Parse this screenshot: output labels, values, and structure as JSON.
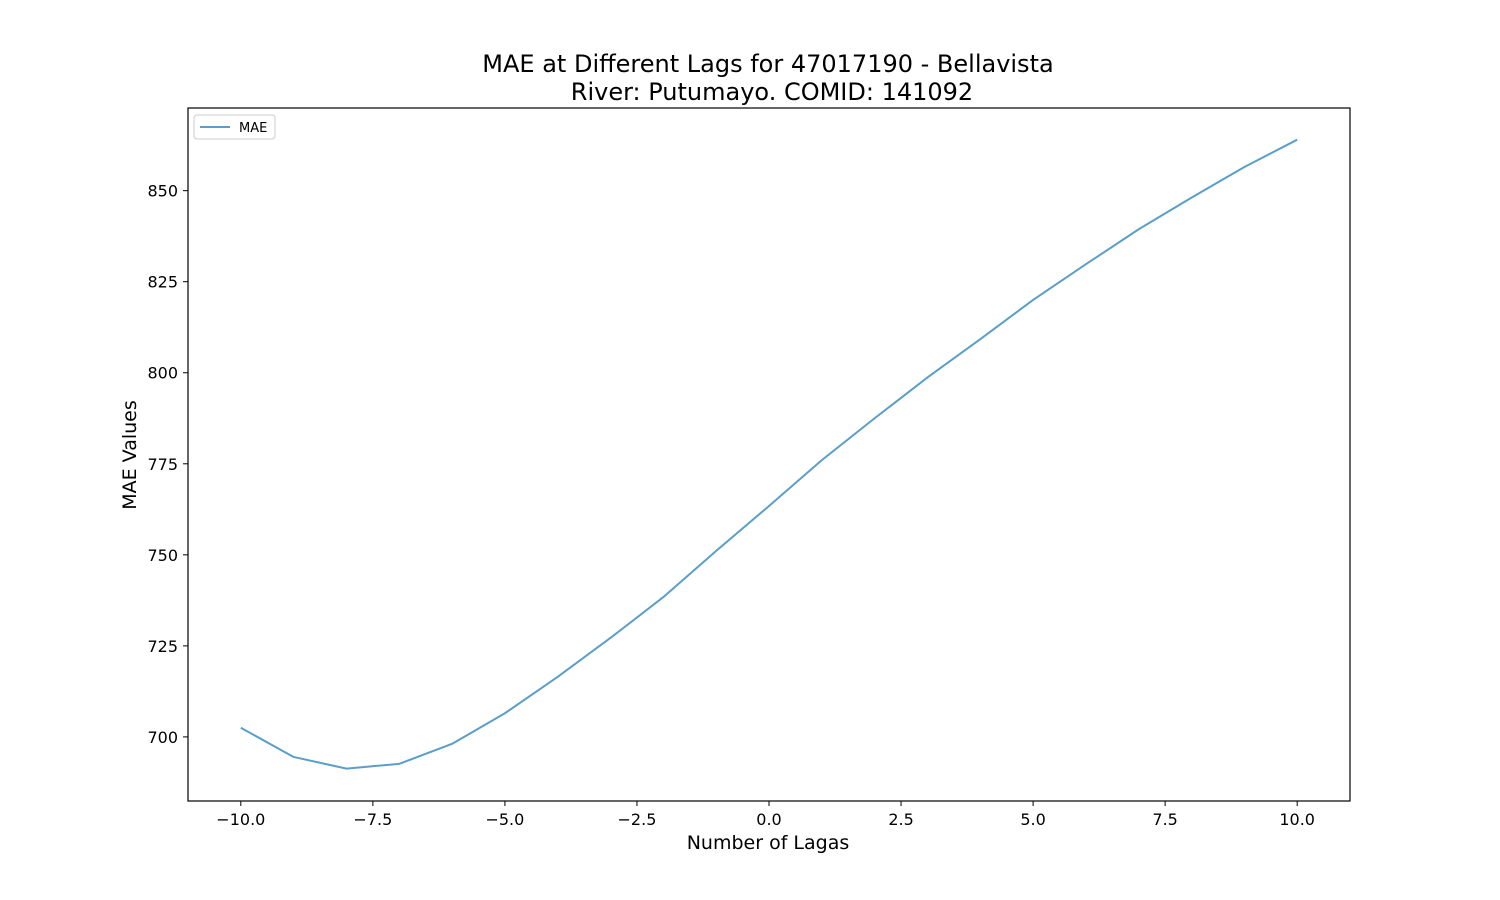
{
  "chart_data": {
    "type": "line",
    "title": "MAE at Different Lags for 47017190 - Bellavista",
    "subtitle": "River: Putumayo. COMID: 141092",
    "xlabel": "Number of Lagas",
    "ylabel": "MAE Values",
    "xlim": [
      -11,
      11
    ],
    "ylim": [
      682.4,
      872.7
    ],
    "xticks": [
      -10,
      -7.5,
      -5,
      -2.5,
      0,
      2.5,
      5,
      7.5,
      10
    ],
    "xtick_labels": [
      "−10.0",
      "−7.5",
      "−5.0",
      "−2.5",
      "0.0",
      "2.5",
      "5.0",
      "7.5",
      "10.0"
    ],
    "yticks": [
      700,
      725,
      750,
      775,
      800,
      825,
      850
    ],
    "ytick_labels": [
      "700",
      "725",
      "750",
      "775",
      "800",
      "825",
      "850"
    ],
    "grid": false,
    "legend_position": "top-left",
    "x": [
      -10,
      -9,
      -8,
      -7,
      -6,
      -5,
      -4,
      -3,
      -2,
      -1,
      0,
      1,
      2,
      3,
      4,
      5,
      6,
      7,
      8,
      9,
      10
    ],
    "series": [
      {
        "name": "MAE",
        "color": "#5a9ec9",
        "values": [
          702.5,
          694.5,
          691.3,
          692.6,
          698.1,
          706.5,
          716.5,
          727.2,
          738.4,
          751.1,
          763.4,
          776.0,
          787.5,
          798.7,
          809.2,
          820.0,
          829.8,
          839.4,
          848.1,
          856.5,
          864.0
        ]
      }
    ]
  }
}
